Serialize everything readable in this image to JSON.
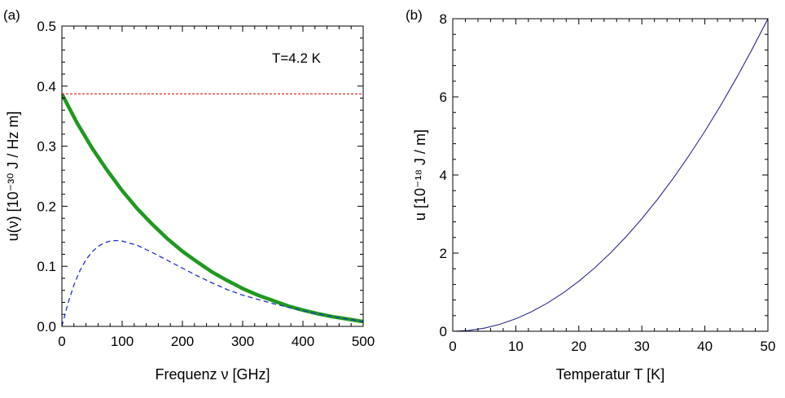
{
  "chart_data": [
    {
      "type": "line",
      "panel_label": "(a)",
      "xlabel": "Frequenz ν [GHz]",
      "ylabel": "u(ν) [10⁻³⁰ J / Hz m]",
      "xlim": [
        0,
        500
      ],
      "ylim": [
        0,
        0.5
      ],
      "xticks": [
        0,
        100,
        200,
        300,
        400,
        500
      ],
      "yticks": [
        0.0,
        0.1,
        0.2,
        0.3,
        0.4,
        0.5
      ],
      "ytick_labels": [
        "0.0",
        "0.1",
        "0.2",
        "0.3",
        "0.4",
        "0.5"
      ],
      "annotation": "T=4.2 K",
      "series": [
        {
          "style": "solid-thick",
          "color": "#1f9a1f",
          "x": [
            0,
            25,
            50,
            75,
            100,
            125,
            150,
            175,
            200,
            225,
            250,
            275,
            300,
            325,
            350,
            375,
            400,
            425,
            450,
            475,
            500
          ],
          "y": [
            0.387,
            0.339,
            0.297,
            0.26,
            0.226,
            0.196,
            0.17,
            0.146,
            0.125,
            0.107,
            0.09,
            0.076,
            0.063,
            0.052,
            0.043,
            0.034,
            0.027,
            0.021,
            0.016,
            0.012,
            0.008
          ]
        },
        {
          "style": "dashed",
          "color": "#2233cc",
          "x": [
            0,
            10,
            20,
            30,
            40,
            50,
            60,
            70,
            80,
            90,
            100,
            125,
            150,
            175,
            200,
            225,
            250,
            275,
            300,
            350,
            400,
            450,
            500
          ],
          "y": [
            0.0,
            0.038,
            0.069,
            0.093,
            0.111,
            0.124,
            0.133,
            0.139,
            0.142,
            0.143,
            0.142,
            0.135,
            0.123,
            0.11,
            0.097,
            0.084,
            0.072,
            0.061,
            0.052,
            0.038,
            0.026,
            0.016,
            0.008
          ]
        },
        {
          "style": "dotted",
          "color": "#e03030",
          "x": [
            0,
            500
          ],
          "y": [
            0.387,
            0.387
          ]
        }
      ]
    },
    {
      "type": "line",
      "panel_label": "(b)",
      "xlabel": "Temperatur T [K]",
      "ylabel": "u [10⁻¹⁸ J / m]",
      "xlim": [
        0,
        50
      ],
      "ylim": [
        0,
        8
      ],
      "xticks": [
        0,
        10,
        20,
        30,
        40,
        50
      ],
      "yticks": [
        0,
        2,
        4,
        6,
        8
      ],
      "ytick_labels": [
        "0",
        "2",
        "4",
        "6",
        "8"
      ],
      "series": [
        {
          "style": "solid-thin",
          "color": "#2a2a8a",
          "x": [
            0,
            2.5,
            5,
            7.5,
            10,
            12.5,
            15,
            17.5,
            20,
            22.5,
            25,
            27.5,
            30,
            32.5,
            35,
            37.5,
            40,
            42.5,
            45,
            47.5,
            50
          ],
          "y": [
            0,
            0.02,
            0.08,
            0.18,
            0.32,
            0.5,
            0.72,
            0.98,
            1.28,
            1.62,
            2.0,
            2.42,
            2.88,
            3.38,
            3.92,
            4.5,
            5.12,
            5.78,
            6.48,
            7.22,
            8.0
          ]
        }
      ]
    }
  ]
}
